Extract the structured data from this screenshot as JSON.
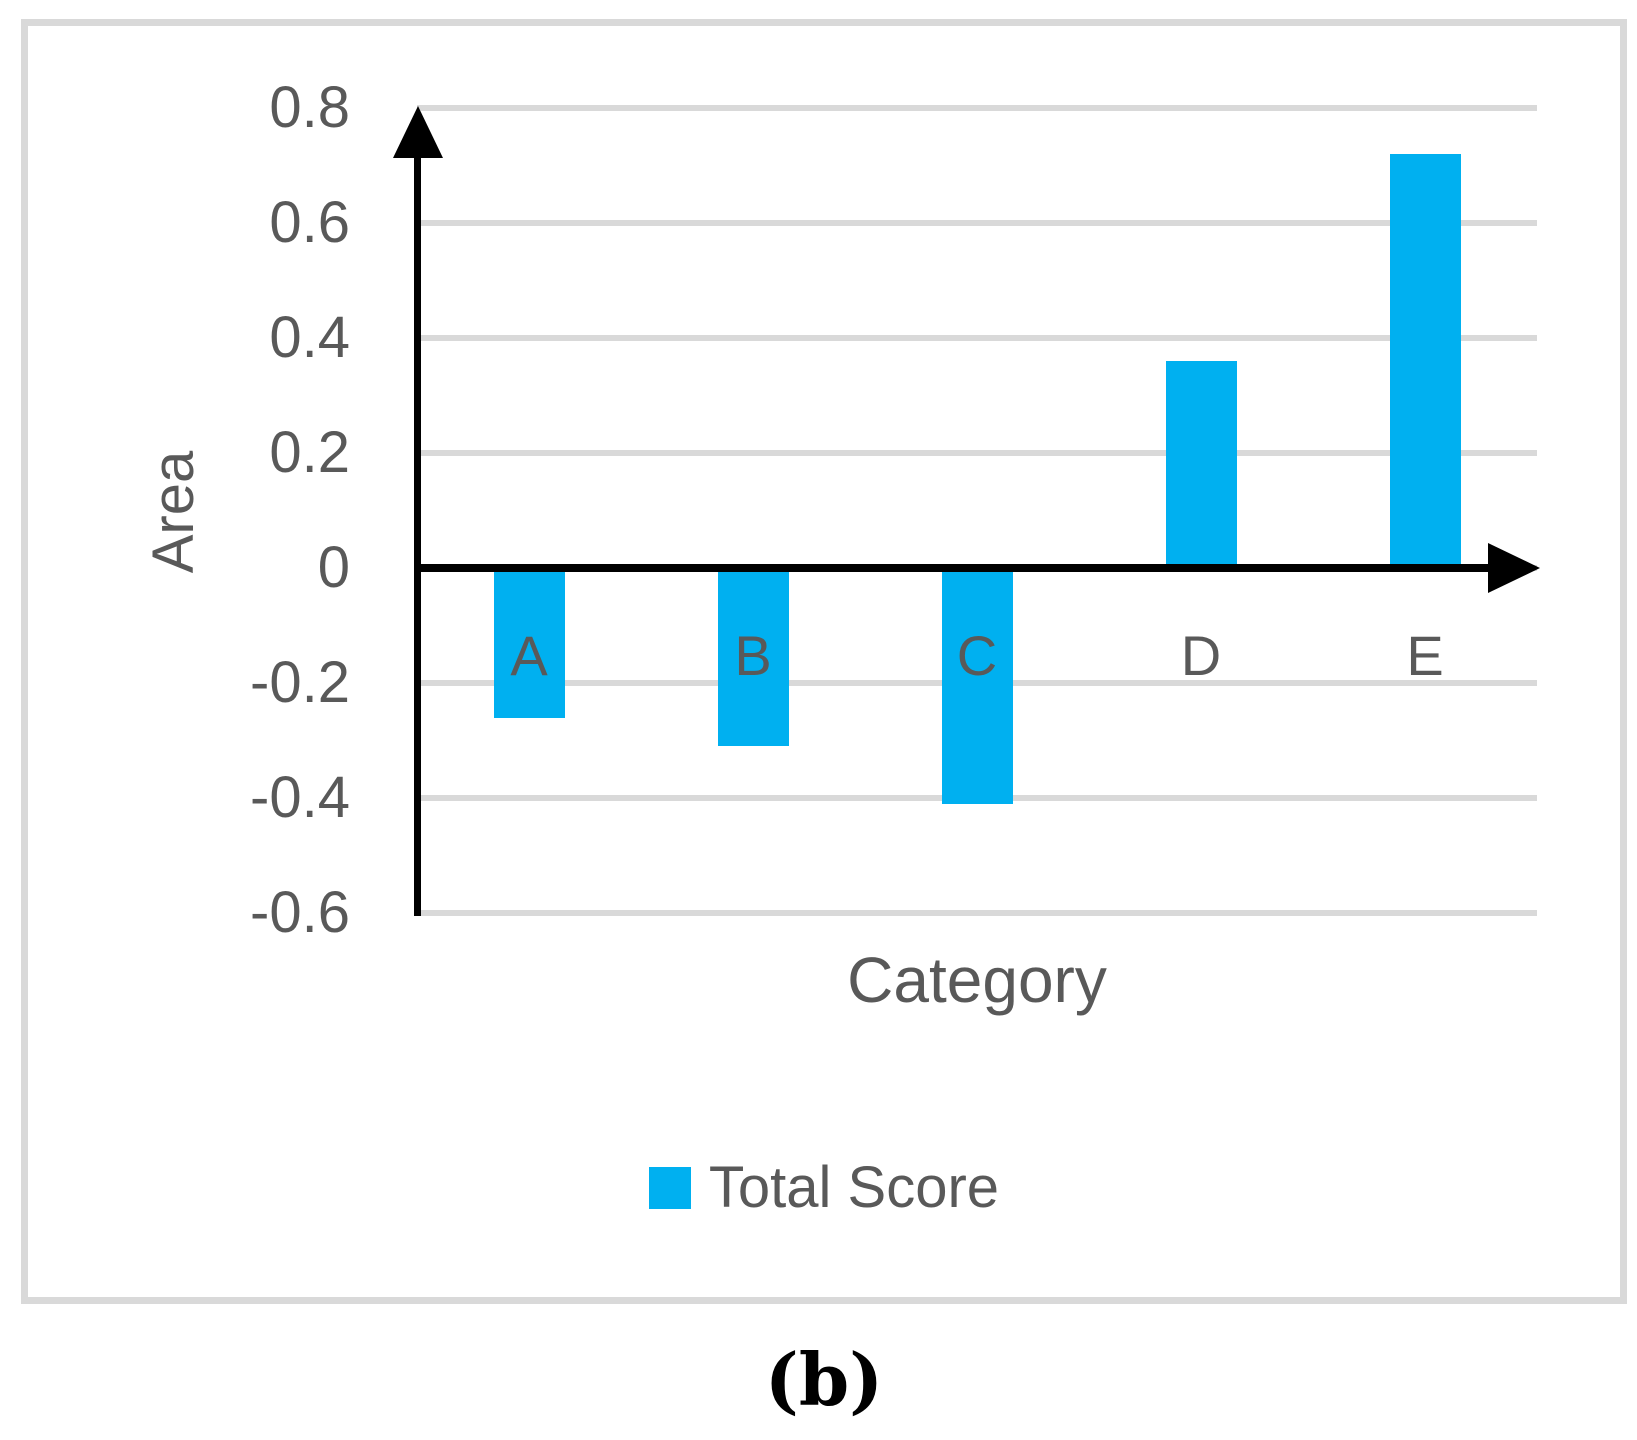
{
  "chart_data": {
    "type": "bar",
    "categories": [
      "A",
      "B",
      "C",
      "D",
      "E"
    ],
    "values": [
      -0.26,
      -0.31,
      -0.41,
      0.36,
      0.72
    ],
    "series": [
      {
        "name": "Total Score",
        "values": [
          -0.26,
          -0.31,
          -0.41,
          0.36,
          0.72
        ]
      }
    ],
    "title": "",
    "xlabel": "Category",
    "ylabel": "Area",
    "ylim": [
      -0.6,
      0.8
    ],
    "yticks": [
      0.8,
      0.6,
      0.4,
      0.2,
      0,
      -0.2,
      -0.4,
      -0.6
    ],
    "ytick_labels": [
      "0.8",
      "0.6",
      "0.4",
      "0.2",
      "0",
      "-0.2",
      "-0.4",
      "-0.6"
    ],
    "grid": "horizontal",
    "legend": {
      "position": "bottom",
      "entries": [
        {
          "label": "Total Score",
          "color": "#00b0f0"
        }
      ]
    }
  },
  "colors": {
    "bar": "#00b0f0",
    "gridline": "#d9d9d9",
    "panel_border": "#d9d9d9",
    "axis": "#000000",
    "label_text": "#595959"
  },
  "caption": "(b)"
}
